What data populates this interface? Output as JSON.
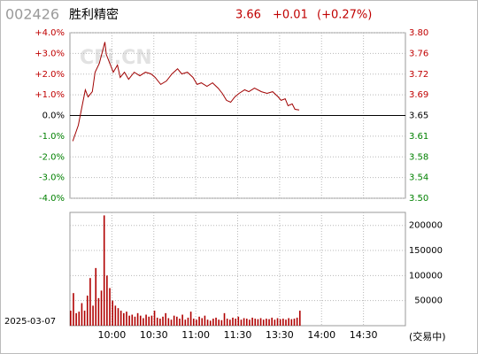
{
  "header": {
    "code": "002426",
    "name": "胜利精密",
    "price": "3.66",
    "change": "+0.01",
    "change_pct": "(+0.27%)",
    "date": "2025-03-07",
    "status": "(交易中)",
    "watermark": "CFi.CN"
  },
  "chart_data": [
    {
      "type": "line",
      "xlim": [
        0,
        240
      ],
      "x": [
        2,
        6,
        8,
        11,
        13,
        16,
        18,
        21,
        23,
        25,
        26,
        28,
        31,
        34,
        36,
        39,
        42,
        46,
        50,
        54,
        58,
        61,
        65,
        69,
        73,
        77,
        80,
        84,
        88,
        91,
        94,
        98,
        102,
        106,
        109,
        112,
        115,
        118,
        121,
        125,
        128,
        132,
        137,
        141,
        145,
        149,
        151,
        154,
        156,
        159,
        161,
        164
      ],
      "series": [
        {
          "color": "#a00000",
          "values": [
            -1.24,
            -0.47,
            0.21,
            1.24,
            0.9,
            1.15,
            2.09,
            2.52,
            3.03,
            3.55,
            2.95,
            2.61,
            2.09,
            2.44,
            1.84,
            2.09,
            1.75,
            2.09,
            1.92,
            2.09,
            2.01,
            1.84,
            1.5,
            1.67,
            2.01,
            2.26,
            2.01,
            2.09,
            1.84,
            1.5,
            1.58,
            1.41,
            1.58,
            1.32,
            1.07,
            0.73,
            0.64,
            0.9,
            1.07,
            1.24,
            1.15,
            1.32,
            1.15,
            1.07,
            1.15,
            0.9,
            0.73,
            0.81,
            0.47,
            0.56,
            0.3,
            0.27
          ]
        }
      ],
      "ylim": [
        -4,
        4
      ],
      "yticks": [
        {
          "value": 4,
          "label": "+4.0%"
        },
        {
          "value": 3,
          "label": "+3.0%"
        },
        {
          "value": 2,
          "label": "+2.0%"
        },
        {
          "value": 1,
          "label": "+1.0%"
        },
        {
          "value": 0,
          "label": "0.0%"
        },
        {
          "value": -1,
          "label": "-1.0%"
        },
        {
          "value": -2,
          "label": "-2.0%"
        },
        {
          "value": -3,
          "label": "-3.0%"
        },
        {
          "value": -4,
          "label": "-4.0%"
        }
      ],
      "y2lim": [
        3.504,
        3.796
      ],
      "y2ticks": [
        {
          "value": 3.796,
          "label": "3.80"
        },
        {
          "value": 3.7595,
          "label": "3.76"
        },
        {
          "value": 3.723,
          "label": "3.72"
        },
        {
          "value": 3.6865,
          "label": "3.69"
        },
        {
          "value": 3.65,
          "label": "3.65"
        },
        {
          "value": 3.6135,
          "label": "3.61"
        },
        {
          "value": 3.577,
          "label": "3.58"
        },
        {
          "value": 3.5405,
          "label": "3.54"
        },
        {
          "value": 3.504,
          "label": "3.50"
        }
      ],
      "grid": true
    },
    {
      "type": "bar",
      "xlim": [
        0,
        240
      ],
      "xticks": [
        {
          "value": 30,
          "label": "10:00"
        },
        {
          "value": 60,
          "label": "10:30"
        },
        {
          "value": 90,
          "label": "11:00"
        },
        {
          "value": 120,
          "label": "11:30"
        },
        {
          "value": 150,
          "label": "13:30"
        },
        {
          "value": 180,
          "label": "14:00"
        },
        {
          "value": 210,
          "label": "14:30"
        }
      ],
      "x": [
        0,
        2,
        4,
        6,
        8,
        10,
        12,
        14,
        16,
        18,
        20,
        22,
        24,
        26,
        28,
        30,
        32,
        34,
        36,
        38,
        40,
        42,
        44,
        46,
        48,
        50,
        52,
        54,
        56,
        58,
        60,
        62,
        64,
        66,
        68,
        70,
        72,
        74,
        76,
        78,
        80,
        82,
        84,
        86,
        88,
        90,
        92,
        94,
        96,
        98,
        100,
        102,
        104,
        106,
        108,
        110,
        112,
        114,
        116,
        118,
        120,
        122,
        124,
        126,
        128,
        130,
        132,
        134,
        136,
        138,
        140,
        142,
        144,
        146,
        148,
        150,
        152,
        154,
        156,
        158,
        160,
        162,
        164
      ],
      "color": "#b00000",
      "values": [
        30000,
        65000,
        25000,
        28000,
        45000,
        30000,
        60000,
        95000,
        40000,
        115000,
        55000,
        70000,
        220000,
        100000,
        75000,
        50000,
        40000,
        35000,
        30000,
        25000,
        28000,
        20000,
        22000,
        18000,
        25000,
        20000,
        15000,
        22000,
        18000,
        20000,
        30000,
        16000,
        14000,
        18000,
        25000,
        15000,
        12000,
        20000,
        18000,
        14000,
        22000,
        12000,
        16000,
        28000,
        14000,
        12000,
        18000,
        15000,
        20000,
        12000,
        10000,
        14000,
        16000,
        12000,
        11000,
        25000,
        14000,
        12000,
        16000,
        14000,
        18000,
        12000,
        15000,
        14000,
        12000,
        16000,
        14000,
        13000,
        15000,
        12000,
        14000,
        13000,
        16000,
        12000,
        15000,
        13000,
        14000,
        12000,
        15000,
        13000,
        14000,
        16000,
        30000
      ],
      "ylim": [
        0,
        226000
      ],
      "yticks": [
        50000,
        100000,
        150000,
        200000
      ],
      "grid": true
    }
  ]
}
